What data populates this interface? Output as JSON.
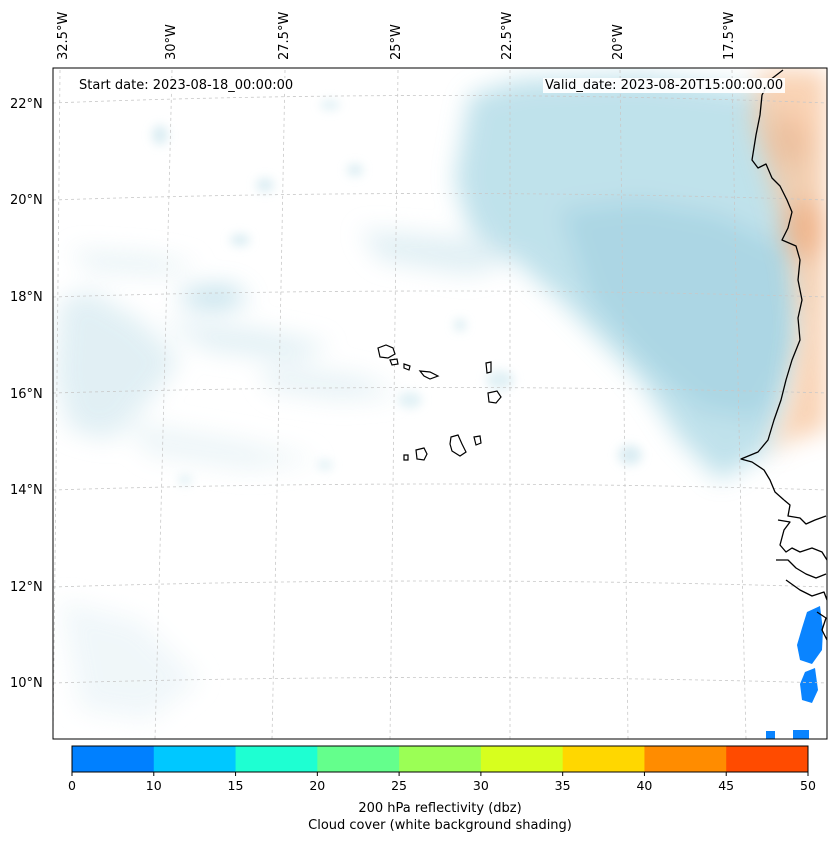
{
  "lon_labels": [
    "32.5°W",
    "30°W",
    "27.5°W",
    "25°W",
    "22.5°W",
    "20°W",
    "17.5°W"
  ],
  "lat_labels": [
    "22°N",
    "20°N",
    "18°N",
    "16°N",
    "14°N",
    "12°N",
    "10°N"
  ],
  "annotations": {
    "start": "Start date: 2023-08-18_00:00:00",
    "valid": "Valid_date: 2023-08-20T15:00:00.00"
  },
  "colorbar": {
    "ticks": [
      "0",
      "10",
      "15",
      "20",
      "25",
      "30",
      "35",
      "40",
      "45",
      "50"
    ],
    "colors": [
      "#0080ff",
      "#00c8ff",
      "#1effd2",
      "#64ff8c",
      "#9bff55",
      "#d7ff1e",
      "#ffd700",
      "#ff8c00",
      "#ff4b00"
    ],
    "label_line1": "200 hPa reflectivity (dbz)",
    "label_line2": "Cloud cover (white background shading)"
  },
  "colors": {
    "cloud": "#a8d8e6",
    "warm_land": "#f6b98a",
    "reflectivity_blue": "#0a84ff",
    "coast": "#000000",
    "grid": "#c8c8c8"
  }
}
